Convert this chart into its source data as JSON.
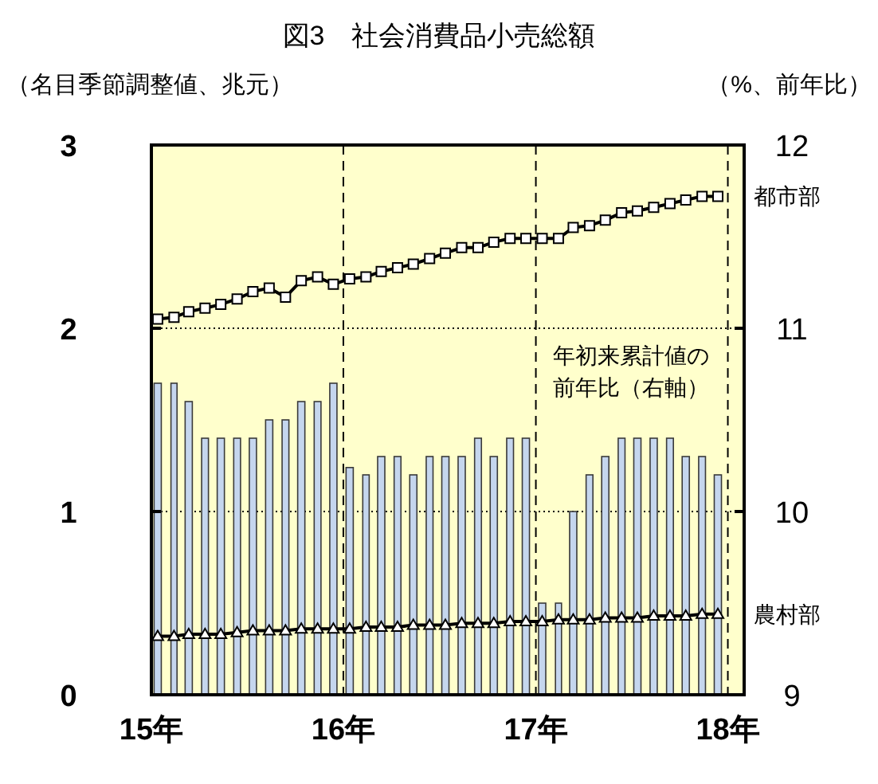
{
  "chart_data": {
    "type": "bar",
    "title": "図3　社会消費品小売総額",
    "ylabel": "（名目季節調整値、兆元）",
    "y2label": "（%、前年比）",
    "x": [
      "2015-01-13",
      "2015-02-13",
      "2015-03-13",
      "2015-04-13",
      "2015-05-13",
      "2015-06-13",
      "2015-07-13",
      "2015-08-13",
      "2015-09-13",
      "2015-10-13",
      "2015-11-13",
      "2015-12-13",
      "2016-01-13",
      "2016-02-13",
      "2016-03-13",
      "2016-04-13",
      "2016-05-13",
      "2016-06-13",
      "2016-07-13",
      "2016-08-13",
      "2016-09-13",
      "2016-10-13",
      "2016-11-13",
      "2016-12-13",
      "2017-01-13",
      "2017-02-13",
      "2017-03-13",
      "2017-04-13",
      "2017-05-13",
      "2017-06-13",
      "2017-07-13",
      "2017-08-13",
      "2017-09-13",
      "2017-10-13",
      "2017-11-13",
      "2017-12-13"
    ],
    "xlim": [
      "2015-01",
      "2018-02"
    ],
    "xticks": [
      {
        "value": "2015",
        "label": "15年"
      },
      {
        "value": "2016",
        "label": "16年"
      },
      {
        "value": "2017",
        "label": "17年"
      },
      {
        "value": "2018",
        "label": "18年"
      }
    ],
    "ylim": [
      0,
      3
    ],
    "yticks": [
      0,
      1,
      2,
      3
    ],
    "y2lim": [
      9,
      12
    ],
    "y2ticks": [
      9,
      10,
      11,
      12
    ],
    "grid": true,
    "series": [
      {
        "name": "年初来累計値の前年比（右軸）",
        "axis": "y2",
        "color": "#c5d6ee",
        "values": [
          10.7,
          10.7,
          10.6,
          10.4,
          10.4,
          10.4,
          10.4,
          10.5,
          10.5,
          10.6,
          10.6,
          10.7,
          10.24,
          10.2,
          10.3,
          10.3,
          10.2,
          10.3,
          10.3,
          10.3,
          10.4,
          10.3,
          10.4,
          10.4,
          9.5,
          9.5,
          10.0,
          10.2,
          10.3,
          10.4,
          10.4,
          10.4,
          10.4,
          10.3,
          10.3,
          10.2
        ]
      },
      {
        "name": "都市部",
        "type": "line",
        "color": "#000000",
        "marker": "square",
        "values": [
          2.05,
          2.06,
          2.09,
          2.11,
          2.13,
          2.16,
          2.2,
          2.22,
          2.17,
          2.26,
          2.28,
          2.24,
          2.27,
          2.28,
          2.31,
          2.33,
          2.35,
          2.38,
          2.41,
          2.44,
          2.44,
          2.47,
          2.49,
          2.49,
          2.49,
          2.49,
          2.55,
          2.56,
          2.59,
          2.63,
          2.64,
          2.66,
          2.68,
          2.7,
          2.72,
          2.72
        ]
      },
      {
        "name": "農村部",
        "type": "line",
        "color": "#000000",
        "marker": "triangle",
        "values": [
          0.32,
          0.32,
          0.33,
          0.33,
          0.33,
          0.34,
          0.35,
          0.35,
          0.35,
          0.36,
          0.36,
          0.36,
          0.36,
          0.37,
          0.37,
          0.37,
          0.38,
          0.38,
          0.38,
          0.39,
          0.39,
          0.39,
          0.4,
          0.4,
          0.4,
          0.41,
          0.41,
          0.41,
          0.42,
          0.42,
          0.42,
          0.43,
          0.43,
          0.43,
          0.44,
          0.44
        ]
      }
    ]
  }
}
